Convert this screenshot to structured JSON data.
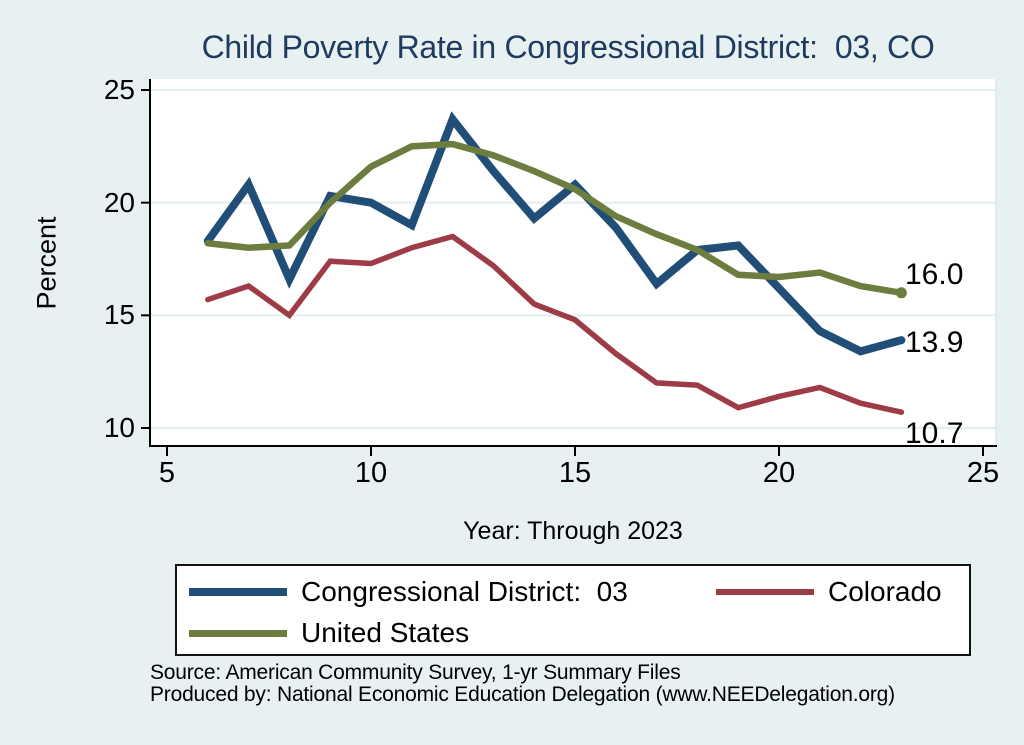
{
  "title": "Child Poverty Rate in Congressional District:  03, CO",
  "x_axis": {
    "label": "Year: Through 2023",
    "ticks": [
      5,
      10,
      15,
      20,
      25
    ]
  },
  "y_axis": {
    "label": "Percent",
    "ticks": [
      25,
      20,
      15,
      10
    ]
  },
  "chart_data": {
    "type": "line",
    "title": "Child Poverty Rate in Congressional District:  03, CO",
    "xlabel": "Year: Through 2023",
    "ylabel": "Percent",
    "xlim": [
      5,
      25
    ],
    "ylim": [
      10,
      25
    ],
    "grid": true,
    "legend_position": "bottom",
    "x": [
      6,
      7,
      8,
      9,
      10,
      11,
      12,
      13,
      14,
      15,
      16,
      17,
      18,
      19,
      20,
      21,
      22,
      23
    ],
    "series": [
      {
        "name": "Congressional District:  03",
        "color": "#204e77",
        "stroke_width": 8,
        "end_label": "13.9",
        "end_dot": false,
        "values": [
          18.3,
          20.8,
          16.6,
          20.3,
          20.0,
          19.0,
          23.7,
          21.4,
          19.3,
          20.8,
          18.9,
          16.4,
          17.9,
          18.1,
          16.2,
          14.3,
          13.4,
          13.9
        ]
      },
      {
        "name": "Colorado",
        "color": "#9d3c46",
        "stroke_width": 5.5,
        "end_label": "10.7",
        "end_dot": false,
        "values": [
          15.7,
          16.3,
          15.0,
          17.4,
          17.3,
          18.0,
          18.5,
          17.2,
          15.5,
          14.8,
          13.3,
          12.0,
          11.9,
          10.9,
          11.4,
          11.8,
          11.1,
          10.7
        ]
      },
      {
        "name": "United States",
        "color": "#6d7d3f",
        "stroke_width": 6.5,
        "end_label": "16.0",
        "end_dot": true,
        "values": [
          18.2,
          18.0,
          18.1,
          20.0,
          21.6,
          22.5,
          22.6,
          22.1,
          21.4,
          20.6,
          19.4,
          18.6,
          17.9,
          16.8,
          16.7,
          16.9,
          16.3,
          16.0
        ]
      }
    ]
  },
  "notes": [
    "Source: American Community Survey, 1-yr Summary Files",
    "Produced by: National Economic Education Delegation (www.NEEDelegation.org)"
  ],
  "colors": {
    "background": "#e8f1f2",
    "plot_background": "#ffffff",
    "grid": "#e3eef0",
    "frame_right": "#d8e5e8",
    "axis": "#000000",
    "title": "#1f3c60",
    "text": "#000000"
  }
}
